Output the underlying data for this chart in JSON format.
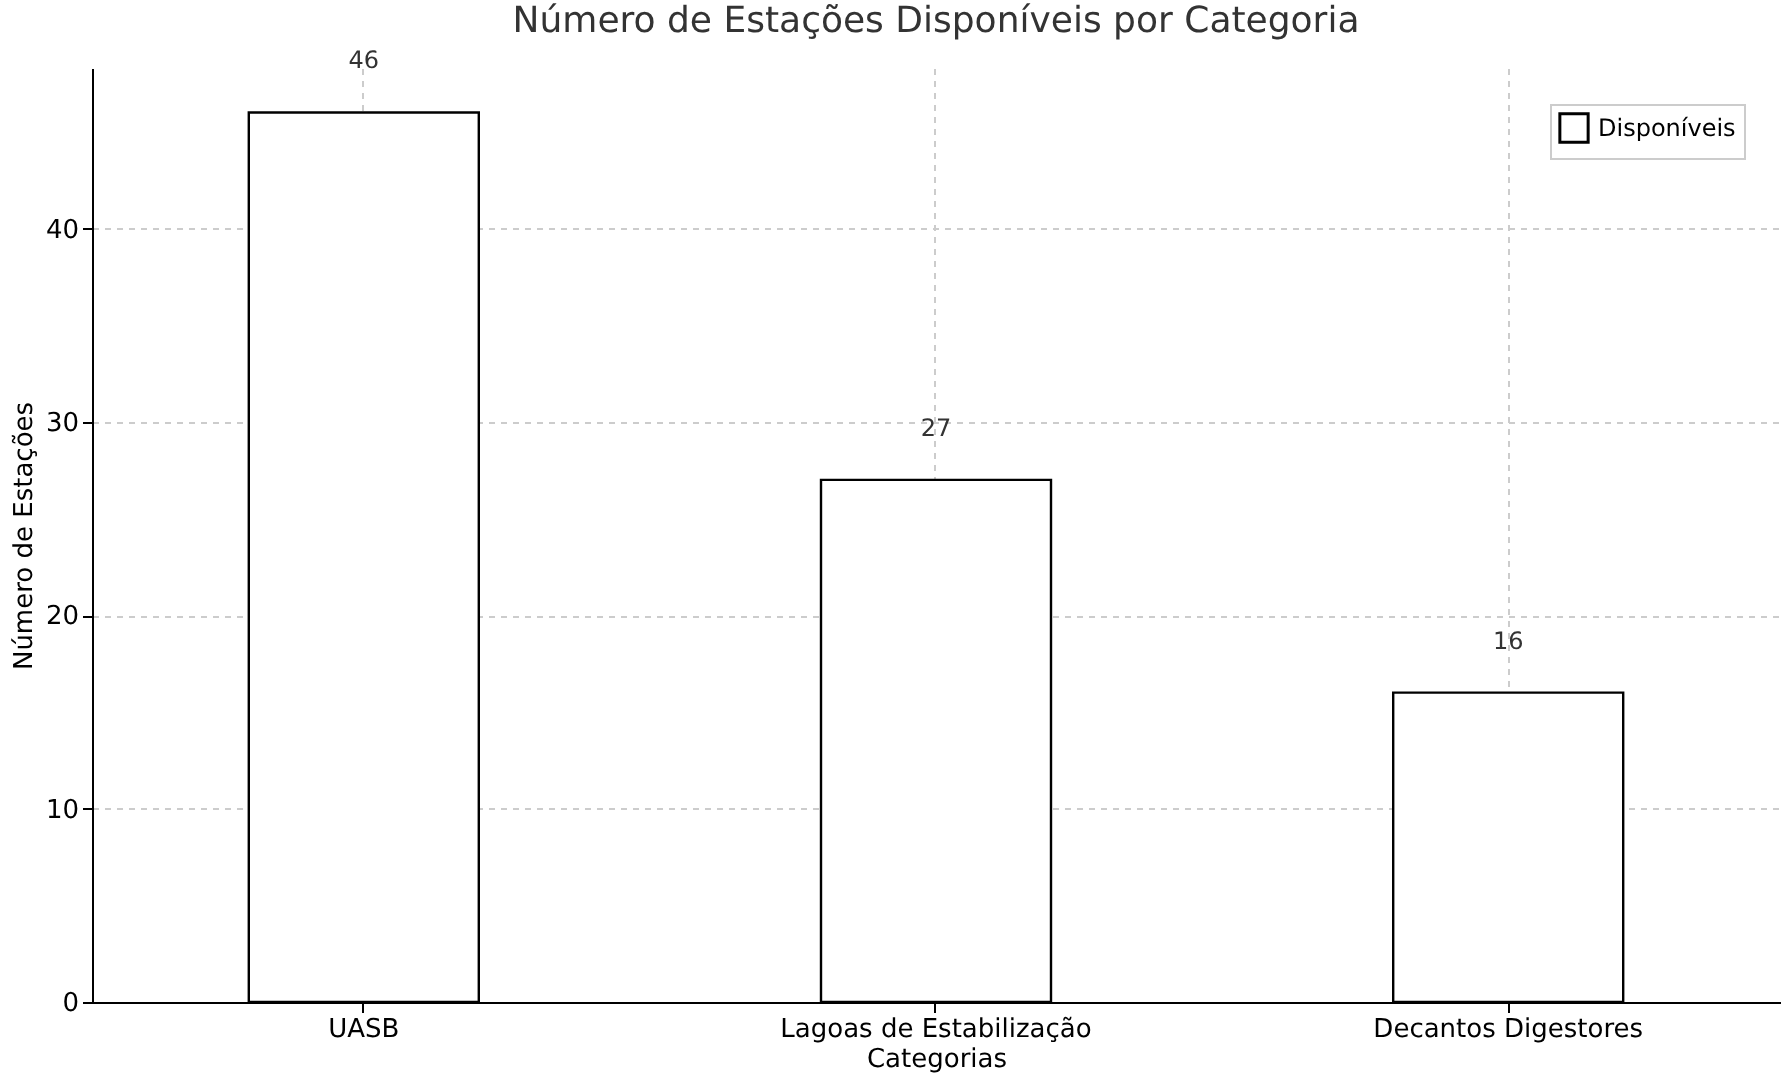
{
  "chart_data": {
    "type": "bar",
    "title": "Número de Estações Disponíveis por Categoria",
    "xlabel": "Categorias",
    "ylabel": "Número de Estações",
    "categories": [
      "UASB",
      "Lagoas de Estabilização",
      "Decantos Digestores"
    ],
    "series": [
      {
        "name": "Disponíveis",
        "color": "#ffffff",
        "values": [
          46,
          27,
          16
        ]
      }
    ],
    "ylim": [
      0,
      48.3
    ],
    "yticks": [
      0,
      10,
      20,
      30,
      40
    ],
    "grid": true,
    "legend": "top right",
    "data_labels": true
  }
}
